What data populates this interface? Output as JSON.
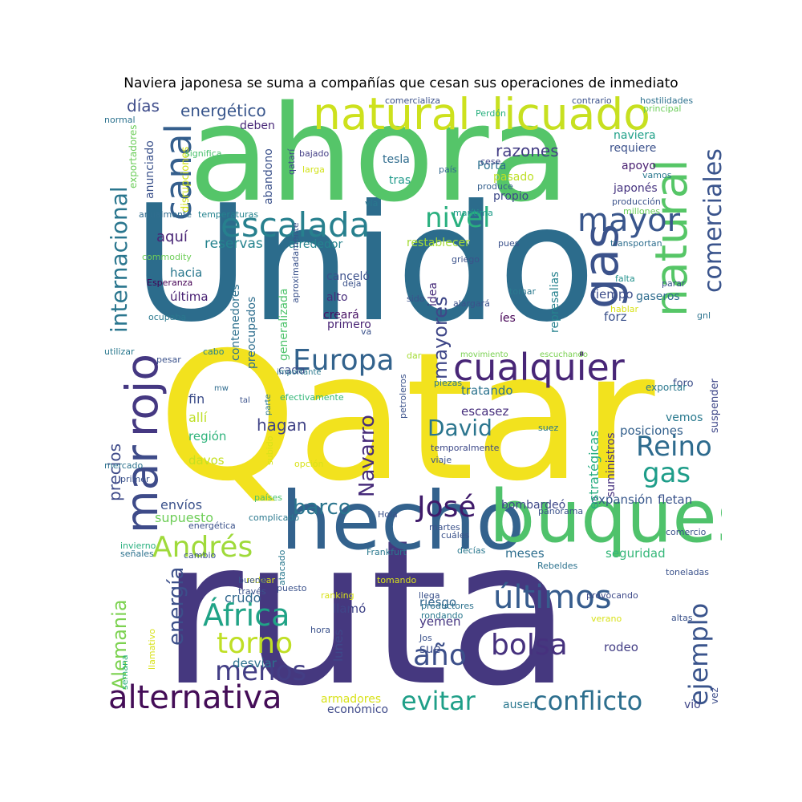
{
  "title": "Naviera japonesa se suma a compañías que cesan sus operaciones de inmediato",
  "words": [
    {
      "text": "Qatar",
      "color": "#f2e21e"
    },
    {
      "text": "ruta",
      "color": "#45387f"
    },
    {
      "text": "Unido",
      "color": "#2c6c8c"
    },
    {
      "text": "ahora",
      "color": "#55c569"
    },
    {
      "text": "hecho",
      "color": "#33628d"
    },
    {
      "text": "buques",
      "color": "#4fc26b"
    },
    {
      "text": "natural",
      "color": "#cde11d"
    },
    {
      "text": "licuado",
      "color": "#c7e020"
    },
    {
      "text": "gas",
      "color": "#3b528b"
    },
    {
      "text": "natural",
      "color": "#56c667"
    },
    {
      "text": "cualquier",
      "color": "#482677"
    },
    {
      "text": "escalada",
      "color": "#27808e"
    },
    {
      "text": "mar",
      "color": "#3e4b89"
    },
    {
      "text": "rojo",
      "color": "#453882"
    },
    {
      "text": "alternativa",
      "color": "#440d57"
    },
    {
      "text": "Europa",
      "color": "#33638d"
    },
    {
      "text": "mayor",
      "color": "#39568c"
    },
    {
      "text": "canal",
      "color": "#355f8d"
    },
    {
      "text": "comerciales",
      "color": "#3a548c"
    },
    {
      "text": "internacional",
      "color": "#2a768e"
    },
    {
      "text": "nivel",
      "color": "#2ab07f"
    },
    {
      "text": "José",
      "color": "#3f1a6a"
    },
    {
      "text": "Andrés",
      "color": "#9fda3a"
    },
    {
      "text": "últimos",
      "color": "#365c8d"
    },
    {
      "text": "África",
      "color": "#20a386"
    },
    {
      "text": "torno",
      "color": "#bfdf25"
    },
    {
      "text": "menos",
      "color": "#433e85"
    },
    {
      "text": "año",
      "color": "#3c4f8a"
    },
    {
      "text": "evitar",
      "color": "#1f9f88"
    },
    {
      "text": "conflicto",
      "color": "#2d6f8e"
    },
    {
      "text": "bolsa",
      "color": "#46317e"
    },
    {
      "text": "ejemplo",
      "color": "#3a548c"
    },
    {
      "text": "Reino",
      "color": "#2e6b8e"
    },
    {
      "text": "gas",
      "color": "#1e9d89"
    },
    {
      "text": "David",
      "color": "#2b758e"
    },
    {
      "text": "Navarro",
      "color": "#472c7a"
    },
    {
      "text": "barco",
      "color": "#2b758e"
    },
    {
      "text": "mayores",
      "color": "#3f4788"
    },
    {
      "text": "energía",
      "color": "#3c4f8a"
    },
    {
      "text": "Alemania",
      "color": "#7cd250"
    },
    {
      "text": "energético",
      "color": "#39568c"
    },
    {
      "text": "días",
      "color": "#3e4c8a"
    },
    {
      "text": "razones",
      "color": "#433d84"
    },
    {
      "text": "aquí",
      "color": "#482475"
    },
    {
      "text": "reservas",
      "color": "#25838e"
    },
    {
      "text": "hacia",
      "color": "#2a788e"
    },
    {
      "text": "última",
      "color": "#482173"
    },
    {
      "text": "precios",
      "color": "#3e4a89"
    },
    {
      "text": "hagan",
      "color": "#414487"
    },
    {
      "text": "fin",
      "color": "#3d4e8a"
    },
    {
      "text": "allí",
      "color": "#bddf26"
    },
    {
      "text": "región",
      "color": "#2fb47c"
    },
    {
      "text": "davos",
      "color": "#c5e021"
    },
    {
      "text": "envíos",
      "color": "#3b528b"
    },
    {
      "text": "supuesto",
      "color": "#6ece58"
    },
    {
      "text": "crudo",
      "color": "#31688e"
    },
    {
      "text": "desviar",
      "color": "#2c728e"
    },
    {
      "text": "tratando",
      "color": "#2c738e"
    },
    {
      "text": "escasez",
      "color": "#472f7d"
    },
    {
      "text": "seguridad",
      "color": "#35b779"
    },
    {
      "text": "meses",
      "color": "#2e6e8e"
    },
    {
      "text": "expansión",
      "color": "#38588c"
    },
    {
      "text": "fletan",
      "color": "#3a538b"
    },
    {
      "text": "bombardeó",
      "color": "#3f4889"
    },
    {
      "text": "posiciones",
      "color": "#34618d"
    },
    {
      "text": "vemos",
      "color": "#29798e"
    },
    {
      "text": "suministros",
      "color": "#46307e"
    },
    {
      "text": "estratégicas",
      "color": "#27ad81"
    },
    {
      "text": "rodeo",
      "color": "#433e85"
    },
    {
      "text": "sue",
      "color": "#3d4e8a"
    },
    {
      "text": "riesgo",
      "color": "#31678e"
    },
    {
      "text": "yemen",
      "color": "#453581"
    },
    {
      "text": "llamó",
      "color": "#404588"
    },
    {
      "text": "lunes",
      "color": "#3f4889"
    },
    {
      "text": "tiempo",
      "color": "#3d4d8a"
    },
    {
      "text": "forz",
      "color": "#3b518b"
    },
    {
      "text": "gaseros",
      "color": "#2f6c8e"
    },
    {
      "text": "represalias",
      "color": "#26828e"
    },
    {
      "text": "propio",
      "color": "#3e4989"
    },
    {
      "text": "japonés",
      "color": "#463480"
    },
    {
      "text": "apoyo",
      "color": "#481e70"
    },
    {
      "text": "requiere",
      "color": "#3b518b"
    },
    {
      "text": "naviera",
      "color": "#1fa088"
    },
    {
      "text": "pasado",
      "color": "#bddf26"
    },
    {
      "text": "Porta",
      "color": "#2d708e"
    },
    {
      "text": "tesla",
      "color": "#2f6c8e"
    },
    {
      "text": "tras",
      "color": "#1f9a8a"
    },
    {
      "text": "restablecer",
      "color": "#a5db36"
    },
    {
      "text": "canceló",
      "color": "#3c508b"
    },
    {
      "text": "alto",
      "color": "#472d7b"
    },
    {
      "text": "creará",
      "color": "#471063"
    },
    {
      "text": "primero",
      "color": "#482374"
    },
    {
      "text": "idea",
      "color": "#472c7a"
    },
    {
      "text": "íes",
      "color": "#440154"
    },
    {
      "text": "contenedores",
      "color": "#2d718e"
    },
    {
      "text": "preocupados",
      "color": "#2e6e8e"
    },
    {
      "text": "generalizada",
      "color": "#4ec36b"
    },
    {
      "text": "cada",
      "color": "#3e4c8a"
    },
    {
      "text": "abandono",
      "color": "#3b518b"
    },
    {
      "text": "alrededor",
      "color": "#25838e"
    },
    {
      "text": "deben",
      "color": "#482878"
    },
    {
      "text": "anunciado",
      "color": "#3b528b"
    },
    {
      "text": "disrupciones",
      "color": "#d2e21b"
    },
    {
      "text": "exportadores",
      "color": "#6ccd5a"
    },
    {
      "text": "armadores",
      "color": "#d8e219"
    },
    {
      "text": "económico",
      "color": "#3e4989"
    },
    {
      "text": "ausen",
      "color": "#2a778e"
    },
    {
      "text": "vio",
      "color": "#404688"
    },
    {
      "text": "vez",
      "color": "#3d4d8a"
    },
    {
      "text": "foro",
      "color": "#3c4f8a"
    },
    {
      "text": "suspender",
      "color": "#3f4889"
    },
    {
      "text": "exportar",
      "color": "#2a788e"
    },
    {
      "text": "comercializa",
      "color": "#3b518b"
    },
    {
      "text": "contrario",
      "color": "#3b528b"
    },
    {
      "text": "hostilidades",
      "color": "#2d718e"
    },
    {
      "text": "principal",
      "color": "#6ccd5a"
    },
    {
      "text": "Perdón",
      "color": "#2ab07f"
    },
    {
      "text": "normal",
      "color": "#2c728e"
    },
    {
      "text": "significa",
      "color": "#4ac16d"
    },
    {
      "text": "bajado",
      "color": "#433e85"
    },
    {
      "text": "larga",
      "color": "#d2e21b"
    },
    {
      "text": "qatarí",
      "color": "#3f4889"
    },
    {
      "text": "país",
      "color": "#31688e"
    },
    {
      "text": "cese",
      "color": "#404688"
    },
    {
      "text": "produce",
      "color": "#35608d"
    },
    {
      "text": "vamos",
      "color": "#2a788e"
    },
    {
      "text": "producción",
      "color": "#3b528b"
    },
    {
      "text": "millones",
      "color": "#6ccd5a"
    },
    {
      "text": "vía",
      "color": "#2a788e"
    },
    {
      "text": "anualmente",
      "color": "#2f6c8e"
    },
    {
      "text": "temperaturas",
      "color": "#25838e"
    },
    {
      "text": "marítima",
      "color": "#1e9c89"
    },
    {
      "text": "transportan",
      "color": "#2e6e8e"
    },
    {
      "text": "commodity",
      "color": "#6ece58"
    },
    {
      "text": "Esperanza",
      "color": "#440154"
    },
    {
      "text": "ocupaba",
      "color": "#2a788e"
    },
    {
      "text": "griego",
      "color": "#3b528b"
    },
    {
      "text": "pues",
      "color": "#3b528b"
    },
    {
      "text": "falta",
      "color": "#21918c"
    },
    {
      "text": "parar",
      "color": "#3b528b"
    },
    {
      "text": "hablar",
      "color": "#d8e219"
    },
    {
      "text": "gnl",
      "color": "#2c728e"
    },
    {
      "text": "tomar",
      "color": "#2a788e"
    },
    {
      "text": "alargará",
      "color": "#3b528b"
    },
    {
      "text": "deja",
      "color": "#3b528b"
    },
    {
      "text": "sido",
      "color": "#3b528b"
    },
    {
      "text": "aproximadamente",
      "color": "#3b528b"
    },
    {
      "text": "va",
      "color": "#3b528b"
    },
    {
      "text": "utilizar",
      "color": "#2a788e"
    },
    {
      "text": "pesar",
      "color": "#3b528b"
    },
    {
      "text": "cabo",
      "color": "#25838e"
    },
    {
      "text": "importante",
      "color": "#2a788e"
    },
    {
      "text": "efectivamente",
      "color": "#35b779"
    },
    {
      "text": "dar",
      "color": "#a5db36"
    },
    {
      "text": "movimiento",
      "color": "#7ad151"
    },
    {
      "text": "escuchando",
      "color": "#7ad151"
    },
    {
      "text": "piezas",
      "color": "#2a788e"
    },
    {
      "text": "mw",
      "color": "#2f6c8e"
    },
    {
      "text": "tal",
      "color": "#3b528b"
    },
    {
      "text": "parte",
      "color": "#2a788e"
    },
    {
      "text": "petroleros",
      "color": "#3b528b"
    },
    {
      "text": "suez",
      "color": "#2a788e"
    },
    {
      "text": "temporalmente",
      "color": "#3e4a89"
    },
    {
      "text": "viaje",
      "color": "#3b528b"
    },
    {
      "text": "opción",
      "color": "#d8e219"
    },
    {
      "text": "mercado",
      "color": "#2c728e"
    },
    {
      "text": "primer",
      "color": "#3b528b"
    },
    {
      "text": "países",
      "color": "#4ac16d"
    },
    {
      "text": "subido",
      "color": "#d8e219"
    },
    {
      "text": "complicado",
      "color": "#2a788e"
    },
    {
      "text": "Hola",
      "color": "#3b528b"
    },
    {
      "text": "panorama",
      "color": "#3b528b"
    },
    {
      "text": "cuáles",
      "color": "#3b528b"
    },
    {
      "text": "decías",
      "color": "#2a788e"
    },
    {
      "text": "Frankfurt",
      "color": "#2a788e"
    },
    {
      "text": "invierno",
      "color": "#2ab07f"
    },
    {
      "text": "señales",
      "color": "#2c728e"
    },
    {
      "text": "rodear",
      "color": "#d8e219"
    },
    {
      "text": "tomando",
      "color": "#d8e219"
    },
    {
      "text": "toneladas",
      "color": "#3b528b"
    },
    {
      "text": "puesto",
      "color": "#3b528b"
    },
    {
      "text": "energética",
      "color": "#3b528b"
    },
    {
      "text": "martes",
      "color": "#3b528b"
    },
    {
      "text": "comercio",
      "color": "#3b528b"
    },
    {
      "text": "cambio",
      "color": "#3b528b"
    },
    {
      "text": "atacado",
      "color": "#2a788e"
    },
    {
      "text": "Rebeldes",
      "color": "#2c728e"
    },
    {
      "text": "buena",
      "color": "#3b528b"
    },
    {
      "text": "través",
      "color": "#3b528b"
    },
    {
      "text": "ranking",
      "color": "#d8e219"
    },
    {
      "text": "llega",
      "color": "#3b528b"
    },
    {
      "text": "productores",
      "color": "#2c728e"
    },
    {
      "text": "provocando",
      "color": "#3e4a89"
    },
    {
      "text": "hora",
      "color": "#3b528b"
    },
    {
      "text": "Jos",
      "color": "#3b528b"
    },
    {
      "text": "rondando",
      "color": "#2a788e"
    },
    {
      "text": "verano",
      "color": "#d8e219"
    },
    {
      "text": "altas",
      "color": "#3b528b"
    },
    {
      "text": "llamativo",
      "color": "#d8e219"
    },
    {
      "text": "semana",
      "color": "#2ab07f"
    }
  ]
}
